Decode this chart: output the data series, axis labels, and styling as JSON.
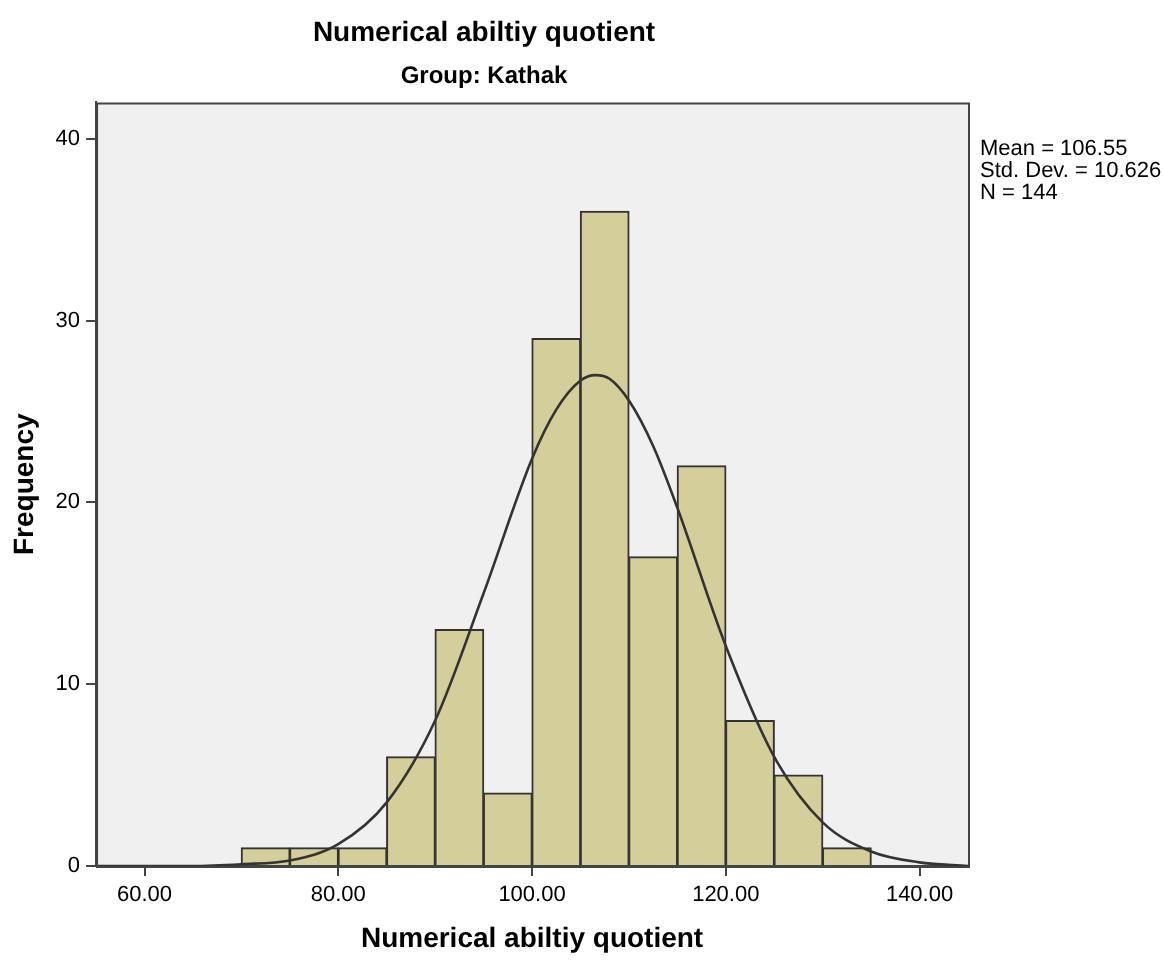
{
  "chart_data": {
    "type": "histogram",
    "title": "Numerical abiltiy quotient",
    "subtitle": "Group: Kathak",
    "xlabel": "Numerical abiltiy quotient",
    "ylabel": "Frequency",
    "bins": [
      70,
      75,
      80,
      85,
      90,
      95,
      100,
      105,
      110,
      115,
      120,
      125,
      130,
      135
    ],
    "values": [
      1,
      1,
      1,
      6,
      13,
      4,
      29,
      36,
      17,
      22,
      8,
      5,
      1
    ],
    "color": "#d3ce9a",
    "series": [
      {
        "type": "line",
        "color": "#333333",
        "marker": "none",
        "x": [
          55,
          60,
          65,
          70,
          75,
          80,
          85,
          90,
          95,
          100,
          102.5,
          105,
          106.55,
          108,
          110,
          112.5,
          115,
          120,
          125,
          130,
          135,
          140,
          145
        ],
        "values": [
          0,
          0,
          0,
          0.1,
          0.3,
          1.2,
          3.5,
          8,
          15,
          22.4,
          25.1,
          26.7,
          27,
          26.8,
          25.6,
          23.1,
          19.7,
          12.1,
          6,
          2.4,
          0.8,
          0.2,
          0
        ]
      }
    ],
    "xlim": [
      55,
      145
    ],
    "xticks": [
      {
        "value": 60,
        "label": "60.00"
      },
      {
        "value": 80,
        "label": "80.00"
      },
      {
        "value": 100,
        "label": "100.00"
      },
      {
        "value": 120,
        "label": "120.00"
      },
      {
        "value": 140,
        "label": "140.00"
      }
    ],
    "ylim": [
      0,
      42
    ],
    "yticks": [
      0,
      10,
      20,
      30,
      40
    ],
    "grid": false,
    "legend": false,
    "annotations": [
      "Mean = 106.55",
      "Std. Dev. = 10.626",
      "N = 144"
    ]
  }
}
